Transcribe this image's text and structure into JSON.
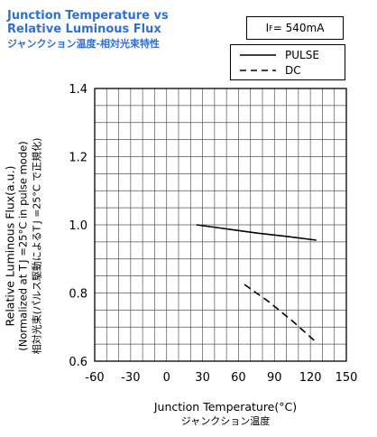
{
  "chart_data": {
    "type": "line",
    "title_lines": [
      "Junction Temperature vs",
      "Relative Luminous Flux",
      "ジャンクション温度-相対光束特性"
    ],
    "condition": {
      "prefix": "I",
      "sub": "F",
      "text": " = 540mA"
    },
    "ylabel_lines": [
      "Relative Luminous Flux(a.u.)",
      "(Normalized at  T J =25°C in pulse mode)",
      "相対光束(パルス駆動によるT J =25°C で正規化)"
    ],
    "xlabel_lines": [
      "Junction Temperature(°C)",
      "ジャンクション温度"
    ],
    "xlim": [
      -60,
      150
    ],
    "ylim": [
      0.6,
      1.4
    ],
    "x_ticks": [
      -60,
      -30,
      0,
      30,
      60,
      90,
      120,
      150
    ],
    "x_tick_labels": [
      "-60",
      "-30",
      "0",
      "30",
      "60",
      "90",
      "120",
      "150"
    ],
    "y_ticks": [
      0.6,
      0.8,
      1.0,
      1.2,
      1.4
    ],
    "y_tick_labels": [
      "0.6",
      "0.8",
      "1.0",
      "1.2",
      "1.4"
    ],
    "grid": true,
    "legend_position": "top-right",
    "series": [
      {
        "name": "PULSE",
        "style": "solid",
        "color": "#000000",
        "x": [
          25,
          50,
          75,
          100,
          125
        ],
        "y": [
          1.0,
          0.988,
          0.976,
          0.966,
          0.955
        ]
      },
      {
        "name": "DC",
        "style": "dashed",
        "color": "#000000",
        "x": [
          65,
          85,
          105,
          125
        ],
        "y": [
          0.825,
          0.775,
          0.718,
          0.655
        ]
      }
    ]
  }
}
